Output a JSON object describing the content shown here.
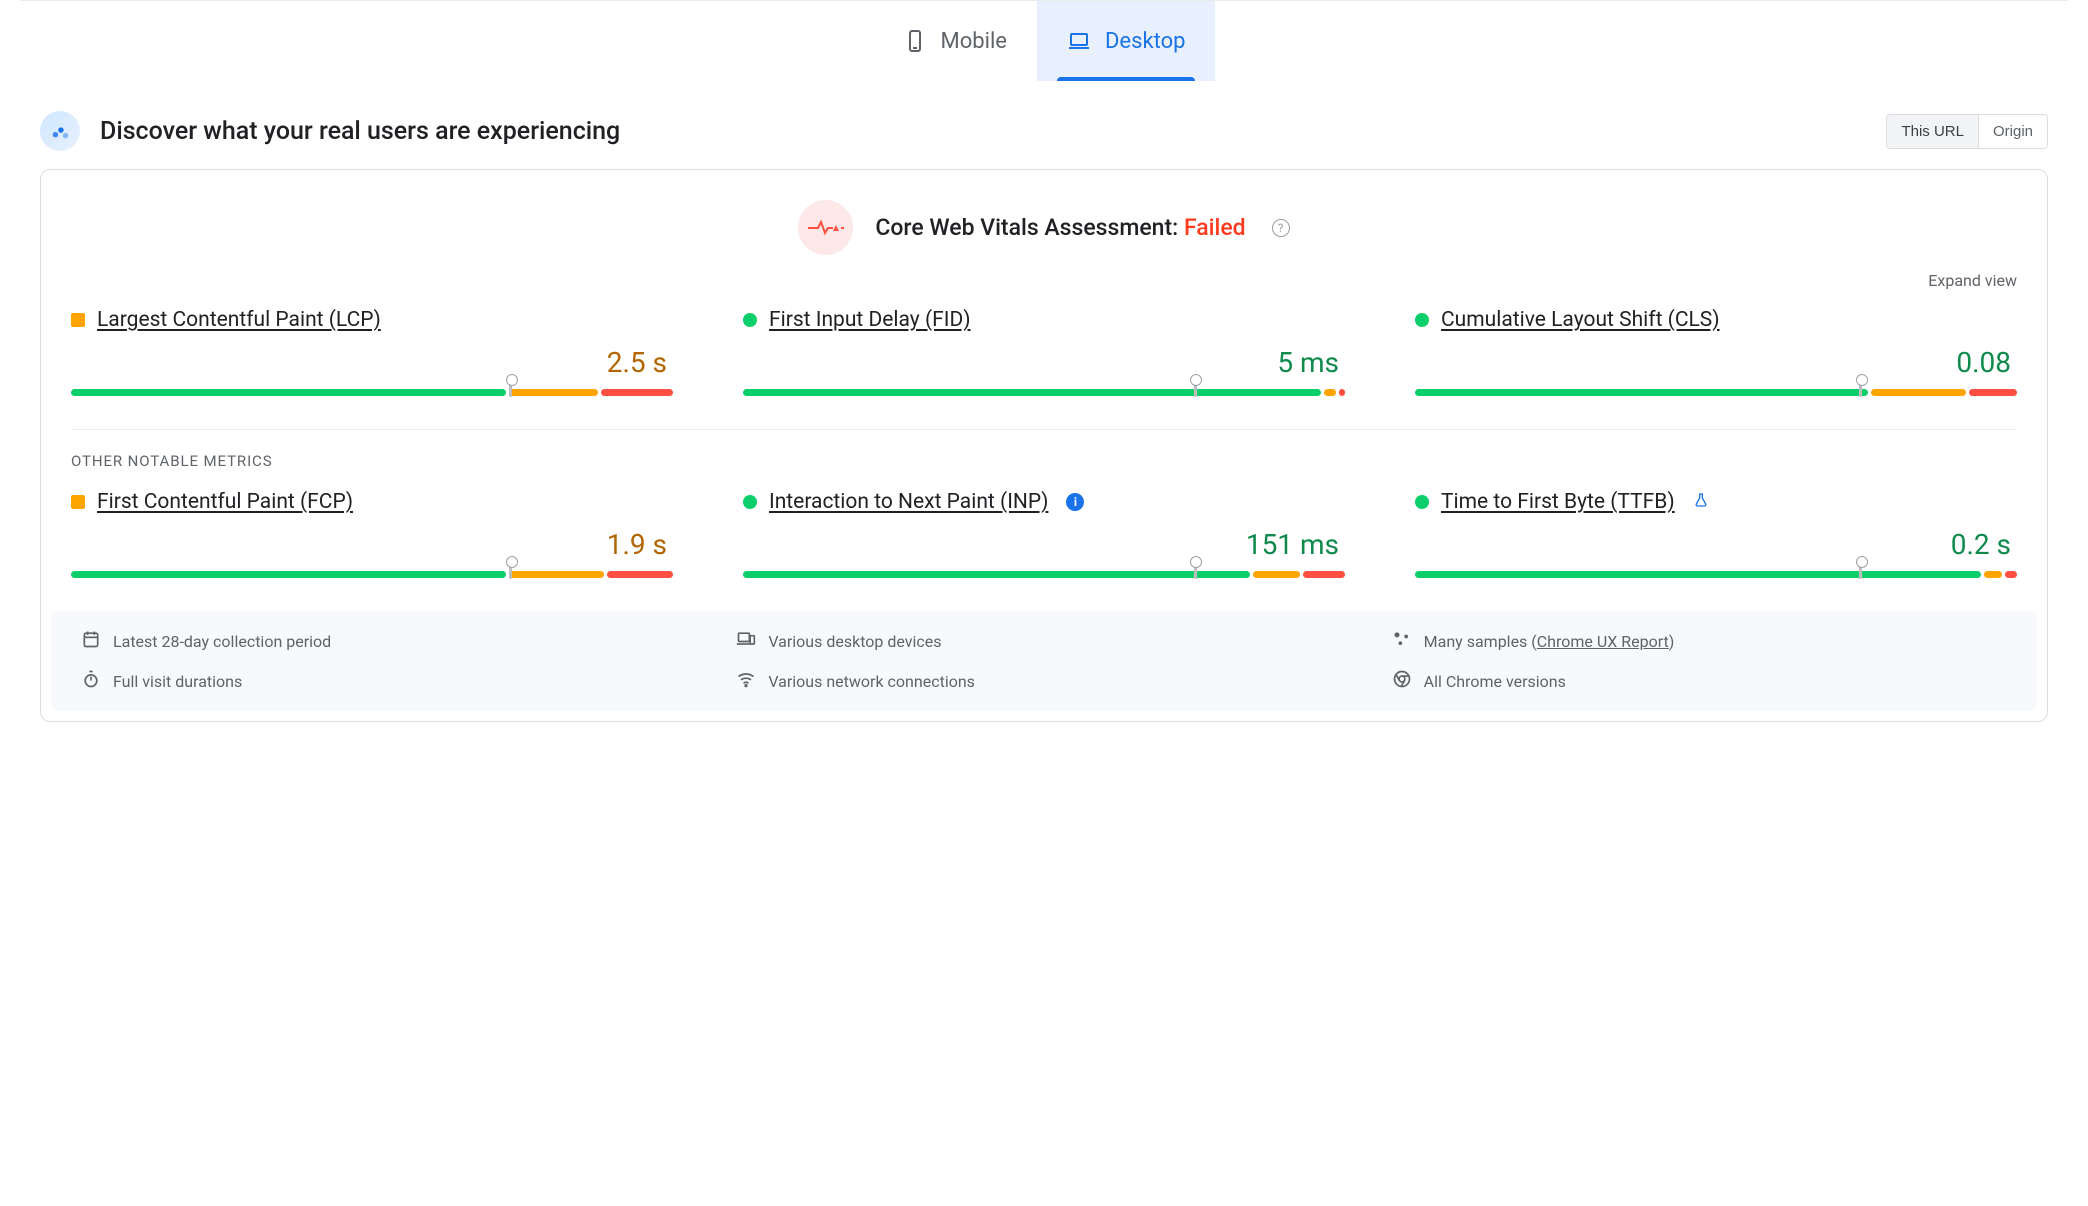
{
  "colors": {
    "primary": "#1a73e8",
    "text": "#202124",
    "muted": "#5f6368",
    "border": "#dadce0",
    "good": "#0cce6b",
    "needs_improve": "#ffa400",
    "poor": "#ff4e42",
    "fail": "#ff3b1f",
    "tab_active_bg": "#e8f0fe",
    "info_bg": "#f7f9fc"
  },
  "tabs": [
    {
      "id": "mobile",
      "label": "Mobile",
      "active": false,
      "icon": "smartphone-icon"
    },
    {
      "id": "desktop",
      "label": "Desktop",
      "active": true,
      "icon": "laptop-icon"
    }
  ],
  "header": {
    "title": "Discover what your real users are experiencing"
  },
  "scope": {
    "options": [
      {
        "id": "this_url",
        "label": "This URL",
        "active": true
      },
      {
        "id": "origin",
        "label": "Origin",
        "active": false
      }
    ]
  },
  "assessment": {
    "label": "Core Web Vitals Assessment:",
    "status_text": "Failed",
    "status_color": "#ff3b1f",
    "help_tooltip": "?"
  },
  "expand_label": "Expand view",
  "sections": {
    "other_label": "OTHER NOTABLE METRICS"
  },
  "status_colors": {
    "good": "#0cce6b",
    "ni": "#ffa400",
    "poor": "#ff4e42"
  },
  "metrics_core": [
    {
      "id": "lcp",
      "label": "Largest Contentful Paint (LCP)",
      "value": "2.5 s",
      "status": "ni",
      "shape": "square",
      "segments": {
        "good": 73,
        "ni": 15,
        "poor": 12
      },
      "marker_pct": 73
    },
    {
      "id": "fid",
      "label": "First Input Delay (FID)",
      "value": "5 ms",
      "status": "good",
      "shape": "circle",
      "segments": {
        "good": 97,
        "ni": 2,
        "poor": 1
      },
      "marker_pct": 75
    },
    {
      "id": "cls",
      "label": "Cumulative Layout Shift (CLS)",
      "value": "0.08",
      "status": "good",
      "shape": "circle",
      "segments": {
        "good": 76,
        "ni": 16,
        "poor": 8
      },
      "marker_pct": 74
    }
  ],
  "metrics_other": [
    {
      "id": "fcp",
      "label": "First Contentful Paint (FCP)",
      "value": "1.9 s",
      "status": "ni",
      "shape": "square",
      "segments": {
        "good": 73,
        "ni": 16,
        "poor": 11
      },
      "marker_pct": 73,
      "badge": null
    },
    {
      "id": "inp",
      "label": "Interaction to Next Paint (INP)",
      "value": "151 ms",
      "status": "good",
      "shape": "circle",
      "segments": {
        "good": 85,
        "ni": 8,
        "poor": 7
      },
      "marker_pct": 75,
      "badge": "info"
    },
    {
      "id": "ttfb",
      "label": "Time to First Byte (TTFB)",
      "value": "0.2 s",
      "status": "good",
      "shape": "circle",
      "segments": {
        "good": 95,
        "ni": 3,
        "poor": 2
      },
      "marker_pct": 74,
      "badge": "flask"
    }
  ],
  "info_panel": [
    {
      "icon": "calendar-icon",
      "text": "Latest 28-day collection period",
      "link": null
    },
    {
      "icon": "devices-icon",
      "text": "Various desktop devices",
      "link": null
    },
    {
      "icon": "samples-icon",
      "text_prefix": "Many samples (",
      "link": "Chrome UX Report",
      "text_suffix": ")"
    },
    {
      "icon": "stopwatch-icon",
      "text": "Full visit durations",
      "link": null
    },
    {
      "icon": "wifi-icon",
      "text": "Various network connections",
      "link": null
    },
    {
      "icon": "chrome-icon",
      "text": "All Chrome versions",
      "link": null
    }
  ]
}
